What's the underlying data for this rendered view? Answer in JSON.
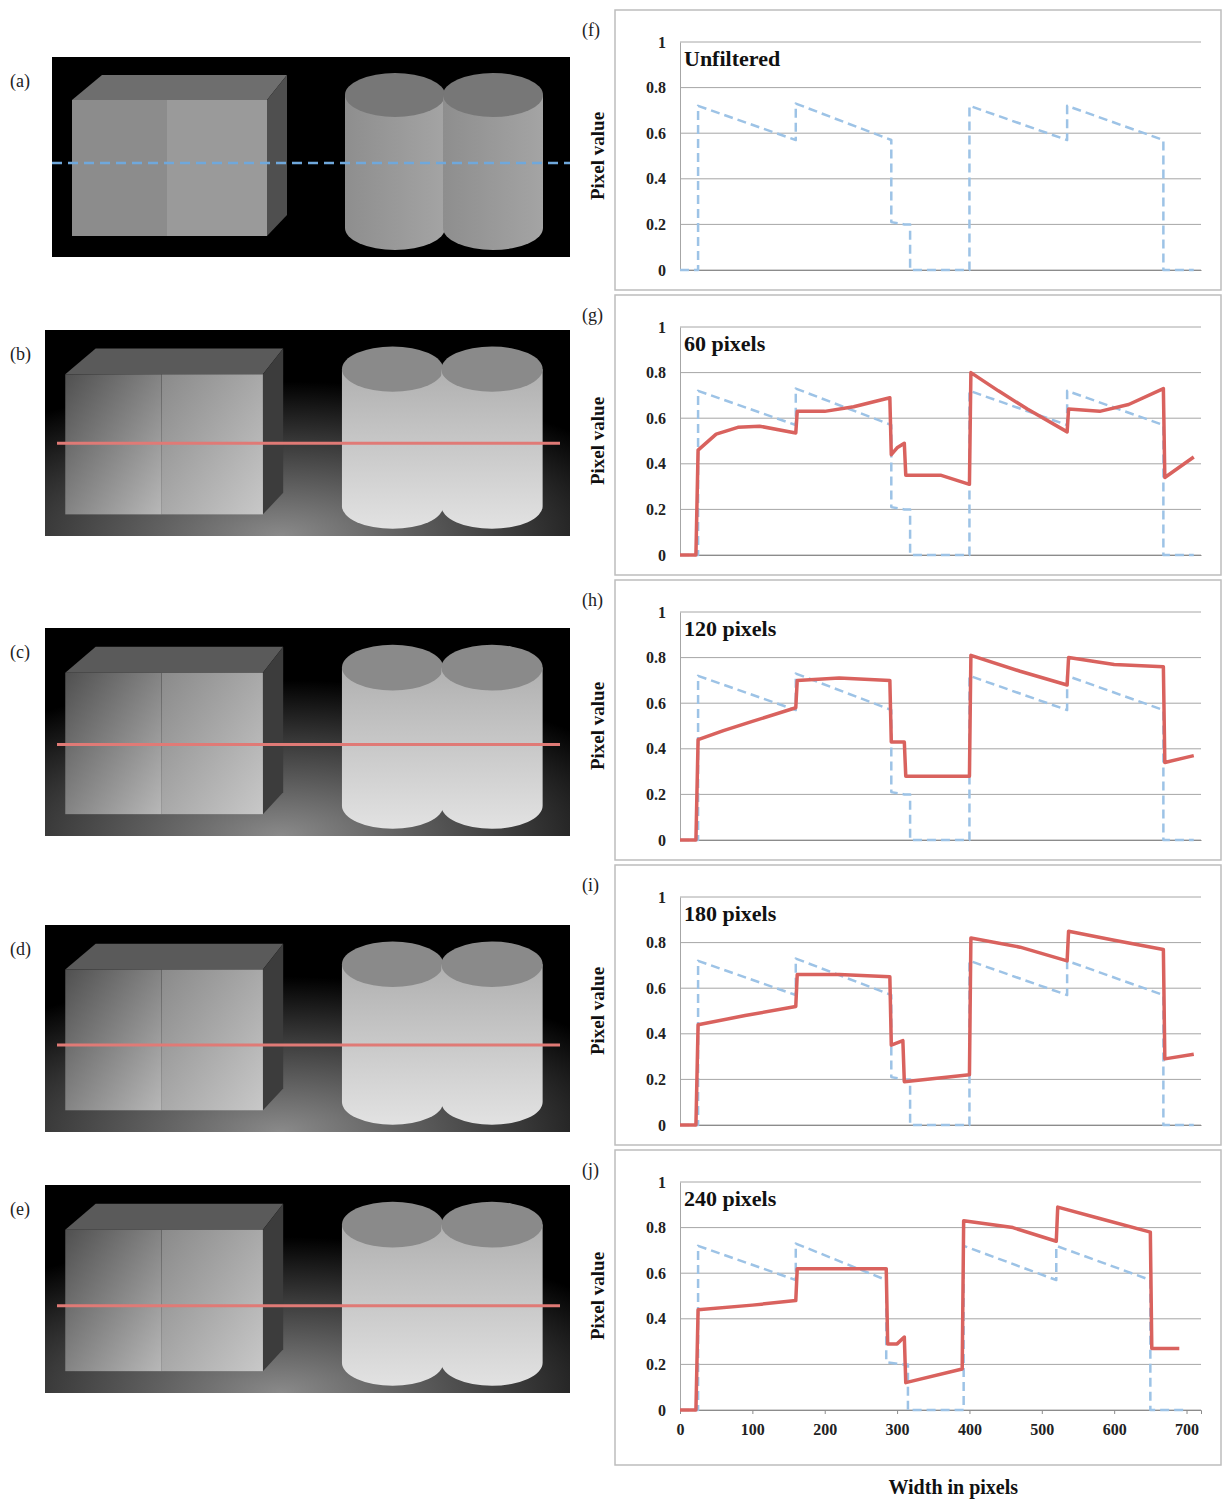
{
  "images": {
    "panels": [
      "(a)",
      "(b)",
      "(c)",
      "(d)",
      "(e)"
    ]
  },
  "chart_data": [
    {
      "type": "line",
      "panel": "(f)",
      "title": "Unfiltered",
      "y_label": "Pixel value",
      "xlim": [
        0,
        720
      ],
      "ylim": [
        0,
        1
      ],
      "yticks": [
        0,
        0.2,
        0.4,
        0.6,
        0.8,
        1
      ],
      "grid": true,
      "series": [
        {
          "color": "#9dc3e6",
          "line_style": "dashed",
          "x": [
            0,
            25,
            25,
            160,
            160,
            292,
            292,
            310,
            318,
            318,
            400,
            400,
            535,
            535,
            668,
            668,
            710
          ],
          "values": [
            0,
            0,
            0.72,
            0.57,
            0.73,
            0.57,
            0.21,
            0.2,
            0.2,
            0,
            0,
            0.72,
            0.57,
            0.72,
            0.57,
            0,
            0
          ]
        }
      ]
    },
    {
      "type": "line",
      "panel": "(g)",
      "title": "60 pixels",
      "y_label": "Pixel value",
      "xlim": [
        0,
        720
      ],
      "ylim": [
        0,
        1
      ],
      "yticks": [
        0,
        0.2,
        0.4,
        0.6,
        0.8,
        1
      ],
      "grid": true,
      "series": [
        {
          "color": "#9dc3e6",
          "line_style": "dashed",
          "x": [
            0,
            25,
            25,
            160,
            160,
            292,
            292,
            310,
            318,
            318,
            400,
            400,
            535,
            535,
            668,
            668,
            710
          ],
          "values": [
            0,
            0,
            0.72,
            0.57,
            0.73,
            0.57,
            0.21,
            0.2,
            0.2,
            0,
            0,
            0.72,
            0.57,
            0.72,
            0.57,
            0,
            0
          ]
        },
        {
          "color": "#d9625e",
          "line_style": "solid",
          "x": [
            0,
            22,
            25,
            50,
            80,
            110,
            160,
            162,
            200,
            240,
            290,
            292,
            300,
            310,
            312,
            360,
            400,
            402,
            440,
            480,
            535,
            537,
            580,
            620,
            668,
            670,
            710
          ],
          "values": [
            0,
            0,
            0.46,
            0.53,
            0.56,
            0.565,
            0.535,
            0.63,
            0.63,
            0.65,
            0.69,
            0.44,
            0.47,
            0.49,
            0.35,
            0.35,
            0.31,
            0.8,
            0.72,
            0.64,
            0.54,
            0.64,
            0.63,
            0.66,
            0.73,
            0.34,
            0.43
          ]
        }
      ]
    },
    {
      "type": "line",
      "panel": "(h)",
      "title": "120 pixels",
      "y_label": "Pixel value",
      "xlim": [
        0,
        720
      ],
      "ylim": [
        0,
        1
      ],
      "yticks": [
        0,
        0.2,
        0.4,
        0.6,
        0.8,
        1
      ],
      "grid": true,
      "series": [
        {
          "color": "#9dc3e6",
          "line_style": "dashed",
          "x": [
            0,
            25,
            25,
            160,
            160,
            292,
            292,
            310,
            318,
            318,
            400,
            400,
            535,
            535,
            668,
            668,
            710
          ],
          "values": [
            0,
            0,
            0.72,
            0.57,
            0.73,
            0.57,
            0.21,
            0.2,
            0.2,
            0,
            0,
            0.72,
            0.57,
            0.72,
            0.57,
            0,
            0
          ]
        },
        {
          "color": "#d9625e",
          "line_style": "solid",
          "x": [
            0,
            22,
            25,
            60,
            100,
            160,
            162,
            220,
            290,
            292,
            310,
            312,
            400,
            402,
            470,
            535,
            537,
            600,
            668,
            670,
            710
          ],
          "values": [
            0,
            0,
            0.44,
            0.48,
            0.52,
            0.58,
            0.7,
            0.71,
            0.7,
            0.43,
            0.43,
            0.28,
            0.28,
            0.81,
            0.74,
            0.68,
            0.8,
            0.77,
            0.76,
            0.34,
            0.37
          ]
        }
      ]
    },
    {
      "type": "line",
      "panel": "(i)",
      "title": "180 pixels",
      "y_label": "Pixel value",
      "xlim": [
        0,
        720
      ],
      "ylim": [
        0,
        1
      ],
      "yticks": [
        0,
        0.2,
        0.4,
        0.6,
        0.8,
        1
      ],
      "grid": true,
      "series": [
        {
          "color": "#9dc3e6",
          "line_style": "dashed",
          "x": [
            0,
            25,
            25,
            160,
            160,
            292,
            292,
            310,
            318,
            318,
            400,
            400,
            535,
            535,
            668,
            668,
            710
          ],
          "values": [
            0,
            0,
            0.72,
            0.57,
            0.73,
            0.57,
            0.21,
            0.2,
            0.2,
            0,
            0,
            0.72,
            0.57,
            0.72,
            0.57,
            0,
            0
          ]
        },
        {
          "color": "#d9625e",
          "line_style": "solid",
          "x": [
            0,
            22,
            25,
            90,
            160,
            162,
            220,
            290,
            292,
            308,
            310,
            400,
            402,
            470,
            535,
            537,
            600,
            668,
            670,
            710
          ],
          "values": [
            0,
            0,
            0.44,
            0.48,
            0.52,
            0.66,
            0.66,
            0.65,
            0.35,
            0.37,
            0.19,
            0.22,
            0.82,
            0.78,
            0.72,
            0.85,
            0.81,
            0.77,
            0.29,
            0.31
          ]
        }
      ]
    },
    {
      "type": "line",
      "panel": "(j)",
      "title": "240 pixels",
      "y_label": "Pixel value",
      "x_label": "Width in pixels",
      "xlim": [
        0,
        720
      ],
      "ylim": [
        0,
        1
      ],
      "xticks": [
        0,
        100,
        200,
        300,
        400,
        500,
        600,
        700
      ],
      "yticks": [
        0,
        0.2,
        0.4,
        0.6,
        0.8,
        1
      ],
      "grid": true,
      "series": [
        {
          "color": "#9dc3e6",
          "line_style": "dashed",
          "x": [
            0,
            25,
            25,
            160,
            160,
            285,
            285,
            305,
            315,
            315,
            392,
            392,
            520,
            520,
            650,
            650,
            700
          ],
          "values": [
            0,
            0,
            0.72,
            0.57,
            0.73,
            0.57,
            0.21,
            0.2,
            0.2,
            0,
            0,
            0.72,
            0.57,
            0.72,
            0.57,
            0,
            0
          ]
        },
        {
          "color": "#d9625e",
          "line_style": "solid",
          "x": [
            0,
            22,
            25,
            100,
            160,
            162,
            220,
            285,
            287,
            300,
            310,
            312,
            390,
            392,
            460,
            520,
            522,
            580,
            650,
            652,
            690
          ],
          "values": [
            0,
            0,
            0.44,
            0.46,
            0.48,
            0.62,
            0.62,
            0.62,
            0.29,
            0.29,
            0.32,
            0.12,
            0.18,
            0.83,
            0.8,
            0.74,
            0.89,
            0.84,
            0.78,
            0.27,
            0.27
          ]
        }
      ]
    }
  ]
}
